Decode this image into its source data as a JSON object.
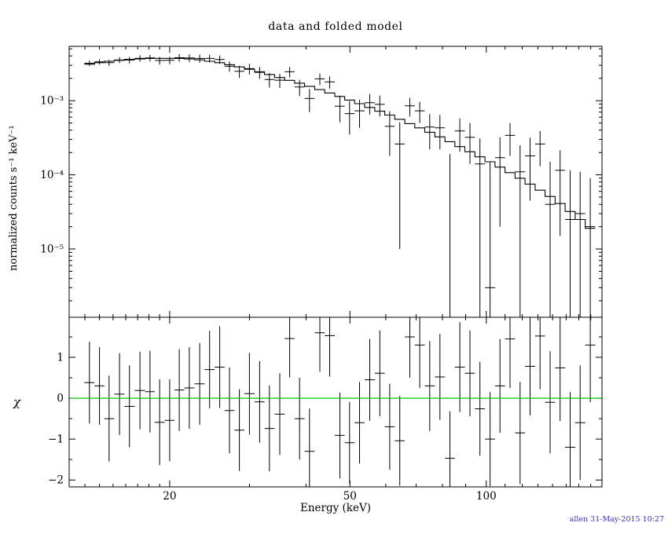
{
  "window": {
    "timestamp": "allen 31-May-2015 10:27",
    "timestamp_color": "#3333cc",
    "background": "#ffffff",
    "foreground": "#000000"
  },
  "chart_data": [
    {
      "type": "line",
      "panel": "spectrum",
      "title": "data and folded model",
      "xlabel": "Energy (keV)",
      "ylabel": "normalized counts s⁻¹ keV⁻¹",
      "xscale": "log",
      "yscale": "log",
      "xlim": [
        12,
        180
      ],
      "ylim": [
        1.2e-06,
        0.0054
      ],
      "x_ticks": [
        20,
        50,
        100
      ],
      "y_ticks": [
        0.001,
        0.0001,
        1e-05
      ],
      "y_tick_labels": [
        "10⁻³",
        "10⁻⁴",
        "10⁻⁵"
      ],
      "grid": false,
      "legend": "none",
      "x": [
        13.3,
        14.0,
        14.7,
        15.5,
        16.3,
        17.2,
        18.1,
        19.0,
        20.0,
        21.0,
        22.1,
        23.3,
        24.5,
        25.8,
        27.1,
        28.5,
        30.0,
        31.6,
        33.2,
        35.0,
        36.8,
        38.7,
        40.7,
        42.9,
        45.1,
        47.5,
        49.9,
        52.5,
        55.3,
        58.2,
        61.2,
        64.4,
        67.8,
        71.3,
        75.0,
        79.0,
        83.1,
        87.4,
        92.0,
        96.8,
        101.9,
        107.2,
        112.8,
        118.7,
        124.9,
        131.4,
        138.3,
        145.5,
        153.1,
        161.1,
        169.6
      ],
      "series": [
        {
          "name": "folded model",
          "style": "step-histogram",
          "color": "#000000",
          "y": [
            0.0031,
            0.00325,
            0.0034,
            0.0035,
            0.0036,
            0.00365,
            0.0037,
            0.00372,
            0.00372,
            0.0037,
            0.00365,
            0.00355,
            0.0034,
            0.00325,
            0.00305,
            0.00285,
            0.00265,
            0.00245,
            0.00225,
            0.00205,
            0.00188,
            0.00172,
            0.00156,
            0.00141,
            0.00127,
            0.00114,
            0.00102,
            0.00091,
            0.00081,
            0.00072,
            0.00064,
            0.00056,
            0.00049,
            0.00043,
            0.000375,
            0.000325,
            0.00028,
            0.00024,
            0.000205,
            0.000175,
            0.00015,
            0.000127,
            0.000107,
            9e-05,
            7.5e-05,
            6.2e-05,
            5.1e-05,
            4.1e-05,
            3.2e-05,
            2.5e-05,
            1.9e-05
          ]
        },
        {
          "name": "data",
          "style": "cross-errorbar",
          "color": "#000000",
          "y": [
            0.0032,
            0.00333,
            0.00325,
            0.00353,
            0.00353,
            0.00372,
            0.00376,
            0.00348,
            0.0035,
            0.00379,
            0.00376,
            0.00371,
            0.00371,
            0.00359,
            0.00291,
            0.00249,
            0.0027,
            0.00241,
            0.00193,
            0.00189,
            0.00245,
            0.00153,
            0.00107,
            0.00197,
            0.00179,
            0.00084,
            0.00067,
            0.00073,
            0.00094,
            0.00089,
            0.00045,
            0.00026,
            0.00085,
            0.00073,
            0.00044,
            0.00043,
            1e-06,
            0.00039,
            0.00032,
            0.00014,
            3e-06,
            0.00017,
            0.00034,
            0.00011,
            0.00018,
            0.00026,
            4e-05,
            0.000115,
            2.5e-05,
            3e-05,
            2e-05
          ],
          "yerr": [
            0.00026,
            0.00027,
            0.0003,
            0.00032,
            0.00036,
            0.00037,
            0.00037,
            0.00041,
            0.00041,
            0.00044,
            0.00044,
            0.00046,
            0.00044,
            0.00045,
            0.00046,
            0.00046,
            0.00045,
            0.00044,
            0.00043,
            0.00041,
            0.00039,
            0.00038,
            0.00037,
            0.00035,
            0.00034,
            0.00033,
            0.00032,
            0.0003,
            0.00029,
            0.00028,
            0.00027,
            0.00025,
            0.00024,
            0.00023,
            0.00022,
            0.00021,
            0.00019,
            0.000185,
            0.00018,
            0.00017,
            0.000145,
            0.00015,
            0.00016,
            0.00014,
            0.000135,
            0.00013,
            0.00011,
            0.0001,
            9e-05,
            8e-05,
            7e-05
          ]
        }
      ]
    },
    {
      "type": "scatter",
      "panel": "residuals",
      "xlabel": "Energy (keV)",
      "ylabel": "χ",
      "xscale": "log",
      "yscale": "linear",
      "xlim": [
        12,
        180
      ],
      "ylim": [
        -2.17,
        1.98
      ],
      "x_ticks": [
        20,
        50,
        100
      ],
      "y_ticks": [
        1,
        0,
        -1,
        -2
      ],
      "y_tick_labels": [
        "1",
        "0",
        "−1",
        "−2"
      ],
      "zero_line_color": "#00cc00",
      "grid": false,
      "x": [
        13.3,
        14.0,
        14.7,
        15.5,
        16.3,
        17.2,
        18.1,
        19.0,
        20.0,
        21.0,
        22.1,
        23.3,
        24.5,
        25.8,
        27.1,
        28.5,
        30.0,
        31.6,
        33.2,
        35.0,
        36.8,
        38.7,
        40.7,
        42.9,
        45.1,
        47.5,
        49.9,
        52.5,
        55.3,
        58.2,
        61.2,
        64.4,
        67.8,
        71.3,
        75.0,
        79.0,
        83.1,
        87.4,
        92.0,
        96.8,
        101.9,
        107.2,
        112.8,
        118.7,
        124.9,
        131.4,
        138.3,
        145.5,
        153.1,
        161.1,
        169.6
      ],
      "series": [
        {
          "name": "chi residuals",
          "style": "cross-errorbar",
          "color": "#000000",
          "y": [
            0.38,
            0.3,
            -0.5,
            0.1,
            -0.2,
            0.19,
            0.16,
            -0.59,
            -0.54,
            0.2,
            0.25,
            0.35,
            0.7,
            0.76,
            -0.3,
            -0.78,
            0.11,
            -0.09,
            -0.74,
            -0.39,
            1.46,
            -0.5,
            -1.3,
            1.6,
            1.53,
            -0.91,
            -1.09,
            -0.6,
            0.45,
            0.61,
            -0.7,
            -1.04,
            1.5,
            1.3,
            0.3,
            0.52,
            -1.47,
            0.76,
            0.61,
            -0.26,
            -1.0,
            0.3,
            1.45,
            -0.85,
            0.78,
            1.52,
            -0.1,
            0.74,
            -1.2,
            -0.6,
            1.3
          ],
          "yerr": [
            1.0,
            0.95,
            1.05,
            1.0,
            1.0,
            0.95,
            1.0,
            1.05,
            1.0,
            1.0,
            1.0,
            1.0,
            0.95,
            1.0,
            1.05,
            1.0,
            1.0,
            1.0,
            1.05,
            1.0,
            0.95,
            1.0,
            1.05,
            0.95,
            1.0,
            1.05,
            1.0,
            1.0,
            1.0,
            1.05,
            1.05,
            1.1,
            1.0,
            1.05,
            1.1,
            1.05,
            1.15,
            1.1,
            1.05,
            1.15,
            1.15,
            1.15,
            1.2,
            1.25,
            1.2,
            1.3,
            1.25,
            1.3,
            1.35,
            1.4,
            1.4
          ]
        }
      ]
    }
  ]
}
